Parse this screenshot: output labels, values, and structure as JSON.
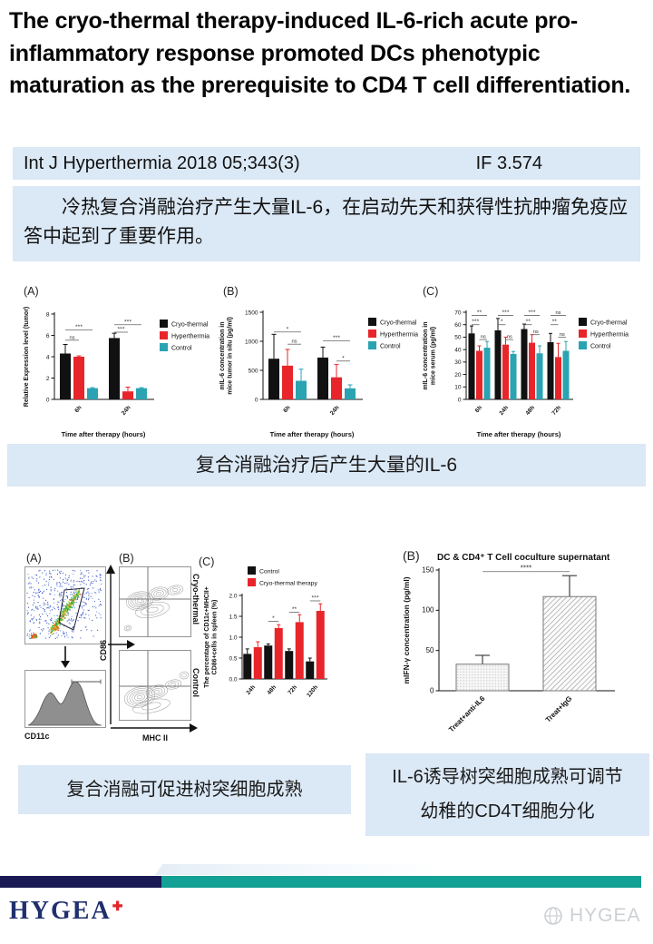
{
  "page": {
    "title": "The cryo-thermal therapy-induced IL-6-rich acute pro-inflammatory response promoted DCs phenotypic maturation as the prerequisite to CD4 T cell differentiation.",
    "journal": "Int J Hyperthermia 2018 05;343(3)",
    "impact": "IF 3.574",
    "summary": "冷热复合消融治疗产生大量IL-6，在启动先天和获得性抗肿瘤免疫应答中起到了重要作用。",
    "caption_fig1": "复合消融治疗后产生大量的IL-6",
    "caption_fig2": "复合消融可促进树突细胞成熟",
    "caption_fig3_line1": "IL-6诱导树突细胞成熟可调节",
    "caption_fig3_line2": "幼稚的CD4T细胞分化"
  },
  "colors": {
    "lightblue": "#dbe8f5",
    "navy": "#191953",
    "teal": "#13a095",
    "logonavy": "#202f6d",
    "logored": "#e3242b",
    "wm": "#ccd0d4"
  },
  "figure2": {
    "panel_a": "(A)",
    "panel_b": "(B)",
    "cd11c": "CD11c",
    "cd86": "CD86",
    "mhc2": "MHC II",
    "row_top": "Cryo-thermal",
    "row_bottom": "Control"
  },
  "footer": {
    "logo": "HYGEA",
    "watermark": "HYGEA"
  },
  "chart_data": [
    {
      "id": "fig1-panelA",
      "type": "bar",
      "panel": "(A)",
      "categories": [
        "6h",
        "24h"
      ],
      "series": [
        {
          "name": "Cryo-thermal",
          "color": "#111111",
          "values": [
            4.3,
            5.75
          ],
          "errors": [
            0.85,
            0.45
          ]
        },
        {
          "name": "Hyperthermia",
          "color": "#e8252a",
          "values": [
            4.0,
            0.75
          ],
          "errors": [
            0.08,
            0.4
          ]
        },
        {
          "name": "Control",
          "color": "#2aa3b2",
          "values": [
            1.05,
            1.05
          ],
          "errors": [
            0.05,
            0.05
          ]
        }
      ],
      "ylabel": [
        "Relative Expression level (tumor)"
      ],
      "ylim": [
        0,
        8
      ],
      "yticks": [
        0,
        2,
        4,
        6,
        8
      ],
      "ytick_labels": [
        "0",
        "2",
        "4",
        "6",
        "8"
      ],
      "xlabel": "Time after therapy (hours)",
      "legend_position": "right",
      "grid": false,
      "annotations": [
        {
          "g1": 0,
          "s1": 0,
          "g2": 0,
          "s2": 2,
          "y": 6.5,
          "label": "***"
        },
        {
          "g1": 0,
          "s1": 0,
          "g2": 0,
          "s2": 1,
          "y": 5.55,
          "label": "ns"
        },
        {
          "g1": 1,
          "s1": 0,
          "g2": 1,
          "s2": 2,
          "y": 7.0,
          "label": "***"
        },
        {
          "g1": 1,
          "s1": 0,
          "g2": 1,
          "s2": 1,
          "y": 6.3,
          "label": "***"
        }
      ]
    },
    {
      "id": "fig1-panelB",
      "type": "bar",
      "panel": "(B)",
      "categories": [
        "6h",
        "24h"
      ],
      "series": [
        {
          "name": "Cryo-thermal",
          "color": "#111111",
          "values": [
            700,
            720
          ],
          "errors": [
            420,
            180
          ]
        },
        {
          "name": "Hyperthermia",
          "color": "#e8252a",
          "values": [
            580,
            380
          ],
          "errors": [
            280,
            220
          ]
        },
        {
          "name": "Control",
          "color": "#2aa3b2",
          "values": [
            320,
            190
          ],
          "errors": [
            200,
            60
          ]
        }
      ],
      "ylabel": [
        "mIL-6 concentration in",
        "mice tumor in situ (pg/ml)"
      ],
      "ylim": [
        0,
        1500
      ],
      "yticks": [
        0,
        500,
        1000,
        1500
      ],
      "ytick_labels": [
        "0",
        "500",
        "1000",
        "1500"
      ],
      "xlabel": "Time after therapy (hours)",
      "legend_position": "right",
      "grid": false,
      "annotations": [
        {
          "g1": 0,
          "s1": 0,
          "g2": 0,
          "s2": 2,
          "y": 1160,
          "label": "*"
        },
        {
          "g1": 0,
          "s1": 1,
          "g2": 0,
          "s2": 2,
          "y": 950,
          "label": "ns"
        },
        {
          "g1": 1,
          "s1": 0,
          "g2": 1,
          "s2": 2,
          "y": 1010,
          "label": "***"
        },
        {
          "g1": 1,
          "s1": 1,
          "g2": 1,
          "s2": 2,
          "y": 660,
          "label": "*"
        }
      ]
    },
    {
      "id": "fig1-panelC",
      "type": "bar",
      "panel": "(C)",
      "categories": [
        "6h",
        "24h",
        "48h",
        "72h"
      ],
      "series": [
        {
          "name": "Cryo-thermal",
          "color": "#111111",
          "values": [
            53,
            55.5,
            56.5,
            46
          ],
          "errors": [
            6,
            9.5,
            4,
            7
          ]
        },
        {
          "name": "Hyperthermia",
          "color": "#e8252a",
          "values": [
            39,
            44,
            45.5,
            34
          ],
          "errors": [
            4,
            6,
            6.5,
            11
          ]
        },
        {
          "name": "Control",
          "color": "#2aa3b2",
          "values": [
            41.5,
            36.5,
            37,
            39
          ],
          "errors": [
            5,
            2,
            6,
            7.5
          ]
        }
      ],
      "ylabel": [
        "mIL-6 concentration in",
        "mice serum (pg/ml)"
      ],
      "ylim": [
        0,
        70
      ],
      "yticks": [
        0,
        10,
        20,
        30,
        40,
        50,
        60,
        70
      ],
      "ytick_labels": [
        "0",
        "10",
        "20",
        "30",
        "40",
        "50",
        "60",
        "70"
      ],
      "xlabel": "Time after therapy (hours)",
      "legend_position": "right",
      "grid": false,
      "annotations": [
        {
          "g1": 0,
          "s1": 0,
          "g2": 0,
          "s2": 2,
          "y": 67.5,
          "label": "**"
        },
        {
          "g1": 0,
          "s1": 0,
          "g2": 0,
          "s2": 1,
          "y": 60,
          "label": "***"
        },
        {
          "g1": 0,
          "s1": 1,
          "g2": 0,
          "s2": 2,
          "y": 48,
          "label": "ns"
        },
        {
          "g1": 1,
          "s1": 0,
          "g2": 1,
          "s2": 2,
          "y": 67.5,
          "label": "***"
        },
        {
          "g1": 1,
          "s1": 0,
          "g2": 1,
          "s2": 1,
          "y": 60,
          "label": "*"
        },
        {
          "g1": 1,
          "s1": 1,
          "g2": 1,
          "s2": 2,
          "y": 48,
          "label": "ns"
        },
        {
          "g1": 2,
          "s1": 0,
          "g2": 2,
          "s2": 2,
          "y": 67.5,
          "label": "***"
        },
        {
          "g1": 2,
          "s1": 0,
          "g2": 2,
          "s2": 1,
          "y": 60,
          "label": "**"
        },
        {
          "g1": 2,
          "s1": 1,
          "g2": 2,
          "s2": 2,
          "y": 52,
          "label": "ns"
        },
        {
          "g1": 3,
          "s1": 0,
          "g2": 3,
          "s2": 2,
          "y": 67.5,
          "label": "ns"
        },
        {
          "g1": 3,
          "s1": 0,
          "g2": 3,
          "s2": 1,
          "y": 60,
          "label": "**"
        },
        {
          "g1": 3,
          "s1": 1,
          "g2": 3,
          "s2": 2,
          "y": 50,
          "label": "ns"
        }
      ]
    },
    {
      "id": "fig2-panelC",
      "type": "bar",
      "panel": "(C)",
      "categories": [
        "24h",
        "48h",
        "72h",
        "120h"
      ],
      "series": [
        {
          "name": "Control",
          "color": "#111111",
          "values": [
            0.6,
            0.8,
            0.67,
            0.42
          ],
          "errors": [
            0.12,
            0.04,
            0.05,
            0.08
          ]
        },
        {
          "name": "Cryo-thermal therapy",
          "color": "#e8252a",
          "values": [
            0.76,
            1.22,
            1.36,
            1.63
          ],
          "errors": [
            0.13,
            0.08,
            0.18,
            0.17
          ]
        }
      ],
      "ylabel": [
        "The percentage of CD11c+MHCII+",
        "CD86+cells in spleen (%)"
      ],
      "ylim": [
        0,
        2
      ],
      "yticks": [
        0,
        0.5,
        1,
        1.5,
        2
      ],
      "ytick_labels": [
        "0.0",
        "0.5",
        "1.0",
        "1.5",
        "2.0"
      ],
      "xlabel": "",
      "legend_position": "top",
      "grid": false,
      "annotations": [
        {
          "g1": 1,
          "s1": 0,
          "g2": 1,
          "s2": 1,
          "y": 1.38,
          "label": "*"
        },
        {
          "g1": 2,
          "s1": 0,
          "g2": 2,
          "s2": 1,
          "y": 1.6,
          "label": "**"
        },
        {
          "g1": 3,
          "s1": 0,
          "g2": 3,
          "s2": 1,
          "y": 1.87,
          "label": "***"
        }
      ]
    },
    {
      "id": "fig3-panelB",
      "type": "bar",
      "panel": "(B)",
      "title": "DC & CD4⁺ T Cell coculture supernatant",
      "categories": [
        "Treat+anti-IL6",
        "Treat+IgG"
      ],
      "series": [
        {
          "name": "mIFN-γ",
          "color": "#e9e9e9",
          "fills": [
            "dots",
            "hatch"
          ],
          "values": [
            33,
            117
          ],
          "errors": [
            11,
            26
          ]
        }
      ],
      "ylabel": [
        "mIFN-γ concentration (pg/ml)"
      ],
      "ylim": [
        0,
        150
      ],
      "yticks": [
        0,
        50,
        100,
        150
      ],
      "ytick_labels": [
        "0",
        "50",
        "100",
        "150"
      ],
      "xlabel": "",
      "legend_position": "none",
      "grid": false,
      "annotations": [
        {
          "g1": 0,
          "s1": 0,
          "g2": 1,
          "s2": 0,
          "y": 148,
          "label": "****"
        }
      ]
    }
  ]
}
